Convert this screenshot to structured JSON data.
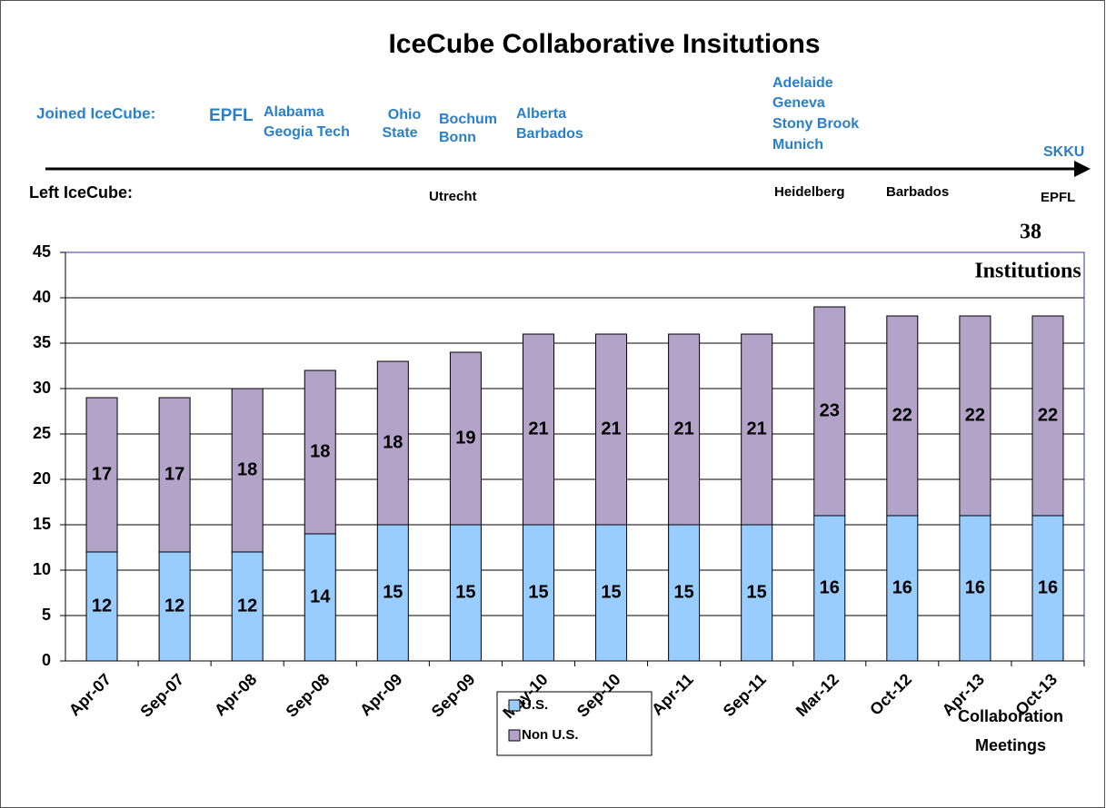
{
  "chart_data": {
    "type": "stacked_bar",
    "title": "IceCube Collaborative Insitutions",
    "joined_label": "Joined IceCube:",
    "joined": [
      [
        "EPFL"
      ],
      [
        "Alabama",
        "Geogia Tech"
      ],
      [
        "Ohio",
        "State"
      ],
      [
        "Bochum",
        "Bonn"
      ],
      [
        "Alberta",
        "Barbados"
      ],
      [
        "Adelaide",
        "Geneva",
        "Stony Brook",
        "Munich"
      ],
      [
        "SKKU"
      ]
    ],
    "left_label": "Left IceCube:",
    "left": [
      "Utrecht",
      "Heidelberg",
      "Barbados",
      "EPFL"
    ],
    "annotation": [
      "38",
      "Institutions"
    ],
    "x_label": [
      "Collaboration",
      "Meetings"
    ],
    "categories": [
      "Apr-07",
      "Sep-07",
      "Apr-08",
      "Sep-08",
      "Apr-09",
      "Sep-09",
      "May-10",
      "Sep-10",
      "Apr-11",
      "Sep-11",
      "Mar-12",
      "Oct-12",
      "Apr-13",
      "Oct-13"
    ],
    "series": [
      {
        "name": "U.S.",
        "color": "#99ccff",
        "values": [
          12,
          12,
          12,
          14,
          15,
          15,
          15,
          15,
          15,
          15,
          16,
          16,
          16,
          16
        ]
      },
      {
        "name": "Non U.S.",
        "color": "#b3a3c9",
        "values": [
          17,
          17,
          18,
          18,
          18,
          19,
          21,
          21,
          21,
          21,
          23,
          22,
          22,
          22
        ]
      }
    ],
    "ylim": [
      0,
      45
    ],
    "yticks": [
      0,
      5,
      10,
      15,
      20,
      25,
      30,
      35,
      40,
      45
    ],
    "grid": true
  }
}
